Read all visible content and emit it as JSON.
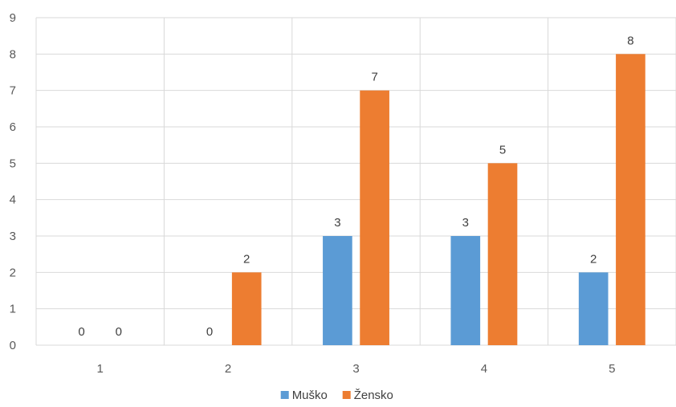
{
  "chart_data": {
    "type": "bar",
    "title": "",
    "xlabel": "",
    "ylabel": "",
    "categories": [
      "1",
      "2",
      "3",
      "4",
      "5"
    ],
    "ylim": [
      0,
      9
    ],
    "yticks": [
      0,
      1,
      2,
      3,
      4,
      5,
      6,
      7,
      8,
      9
    ],
    "grid": true,
    "legend_position": "bottom",
    "series": [
      {
        "name": "Muško",
        "color": "#5B9BD5",
        "values": [
          0,
          0,
          3,
          3,
          2
        ],
        "labels": [
          "0",
          "0",
          "3",
          "3",
          "2"
        ]
      },
      {
        "name": "Žensko",
        "color": "#ED7D31",
        "values": [
          0,
          2,
          7,
          5,
          8
        ],
        "labels": [
          "0",
          "2",
          "7",
          "5",
          "8"
        ]
      }
    ]
  }
}
